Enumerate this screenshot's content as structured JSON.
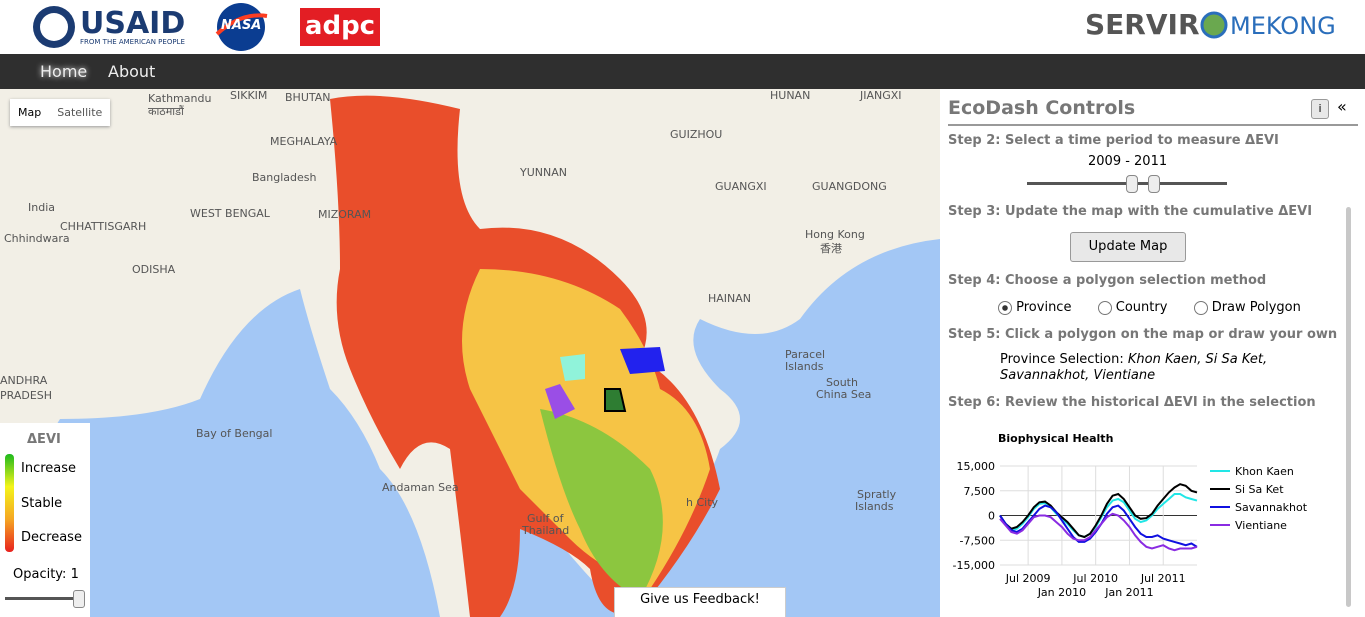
{
  "header": {
    "usaid": "USAID",
    "usaid_sub": "FROM THE AMERICAN PEOPLE",
    "nasa": "NASA",
    "adpc": "adpc",
    "servir": "SERVIR",
    "mekong": "MEKONG"
  },
  "nav": {
    "items": [
      "Home",
      "About"
    ]
  },
  "map": {
    "buttons": [
      "Map",
      "Satellite"
    ],
    "labels": [
      "Kathmandu",
      "काठमाडौं",
      "SIKKIM",
      "BHUTAN",
      "MEGHALAYA",
      "Bangladesh",
      "WEST BENGAL",
      "MIZORAM",
      "India",
      "Chhindwara",
      "CHHATTISGARH",
      "ODISHA",
      "ANDHRA",
      "PRADESH",
      "Bay of Bengal",
      "Andaman Sea",
      "YUNNAN",
      "GUIZHOU",
      "HUNAN",
      "JIANGXI",
      "GUANGXI",
      "GUANGDONG",
      "Hong Kong",
      "香港",
      "HAINAN",
      "Paracel",
      "Islands",
      "South",
      "China Sea",
      "Spratly",
      "Islands",
      "Gulf of",
      "Thailand",
      "h City"
    ],
    "legend": {
      "title": "ΔEVI",
      "items": [
        "Increase",
        "Stable",
        "Decrease"
      ],
      "opacity": "Opacity: 1"
    },
    "feedback": "Give us Feedback!"
  },
  "panel": {
    "title": "EcoDash Controls",
    "info": "i",
    "collapse": "«",
    "step2": "Step 2: Select a time period to measure ΔEVI",
    "period": "2009 - 2011",
    "step3": "Step 3: Update the map with the cumulative ΔEVI",
    "update": "Update Map",
    "step4": "Step 4: Choose a polygon selection method",
    "options": [
      "Province",
      "Country",
      "Draw Polygon"
    ],
    "step5": "Step 5: Click a polygon on the map or draw your own",
    "selection_label": "Province Selection:",
    "selection": "Khon Kaen, Si Sa Ket, Savannakhot, Vientiane",
    "step6": "Step 6: Review the historical ΔEVI in the selection"
  },
  "chart_data": {
    "type": "line",
    "title": "Biophysical Health",
    "x": [
      "2009-02",
      "2009-03",
      "2009-04",
      "2009-05",
      "2009-06",
      "2009-07",
      "2009-08",
      "2009-09",
      "2009-10",
      "2009-11",
      "2009-12",
      "2010-01",
      "2010-02",
      "2010-03",
      "2010-04",
      "2010-05",
      "2010-06",
      "2010-07",
      "2010-08",
      "2010-09",
      "2010-10",
      "2010-11",
      "2010-12",
      "2011-01",
      "2011-02",
      "2011-03",
      "2011-04",
      "2011-05",
      "2011-06",
      "2011-07",
      "2011-08",
      "2011-09",
      "2011-10",
      "2011-11",
      "2011-12",
      "2012-01"
    ],
    "xlim": [
      "2009-02",
      "2012-01"
    ],
    "xticks": [
      {
        "value": "2009-07",
        "label": "Jul 2009"
      },
      {
        "value": "2010-01",
        "label": "Jan 2010"
      },
      {
        "value": "2010-07",
        "label": "Jul 2010"
      },
      {
        "value": "2011-01",
        "label": "Jan 2011"
      },
      {
        "value": "2011-07",
        "label": "Jul 2011"
      }
    ],
    "ylim": [
      -15000,
      15000
    ],
    "yticks": [
      {
        "value": 15000,
        "label": "15,000"
      },
      {
        "value": 7500,
        "label": "7,500"
      },
      0,
      {
        "value": -7500,
        "label": "-7,500"
      },
      {
        "value": -15000,
        "label": "-15,000"
      }
    ],
    "grid": true,
    "series": [
      {
        "name": "Khon Kaen",
        "color": "#22e6e6",
        "values": [
          0,
          -2500,
          -4500,
          -4000,
          -2500,
          -500,
          2000,
          3500,
          3800,
          2500,
          500,
          -1000,
          -2500,
          -4500,
          -6000,
          -6500,
          -5500,
          -3500,
          -500,
          2500,
          4500,
          5000,
          4000,
          1500,
          -1000,
          -2000,
          -1500,
          0,
          2000,
          3500,
          5000,
          6500,
          6500,
          5500,
          5000,
          4500
        ]
      },
      {
        "name": "Si Sa Ket",
        "color": "#000000",
        "values": [
          0,
          -2500,
          -4000,
          -3500,
          -2000,
          0,
          2500,
          4000,
          4200,
          3000,
          1000,
          -500,
          -2000,
          -4000,
          -6000,
          -6500,
          -5500,
          -3000,
          0,
          3500,
          6000,
          6500,
          5000,
          2500,
          0,
          -1000,
          -800,
          500,
          3000,
          5000,
          7000,
          8500,
          9500,
          9000,
          7500,
          7000
        ]
      },
      {
        "name": "Savannakhot",
        "color": "#1010e0",
        "values": [
          0,
          -2500,
          -4500,
          -5000,
          -4000,
          -2000,
          0,
          2000,
          3000,
          2500,
          1000,
          -1500,
          -4000,
          -6500,
          -8000,
          -8000,
          -7000,
          -5000,
          -2500,
          500,
          2500,
          3000,
          1500,
          -1000,
          -3500,
          -5500,
          -6500,
          -6500,
          -6000,
          -7000,
          -7500,
          -8000,
          -8500,
          -9000,
          -8500,
          -9500
        ]
      },
      {
        "name": "Vientiane",
        "color": "#8a2be2",
        "values": [
          -1000,
          -3000,
          -5000,
          -5500,
          -4500,
          -2500,
          -500,
          0,
          0,
          -500,
          -2000,
          -3500,
          -5500,
          -7000,
          -7500,
          -7500,
          -6500,
          -4500,
          -2500,
          -500,
          500,
          0,
          -1500,
          -3500,
          -6000,
          -8000,
          -9500,
          -10000,
          -9500,
          -9000,
          -10000,
          -10500,
          -10000,
          -10000,
          -10000,
          -9500
        ]
      }
    ]
  }
}
